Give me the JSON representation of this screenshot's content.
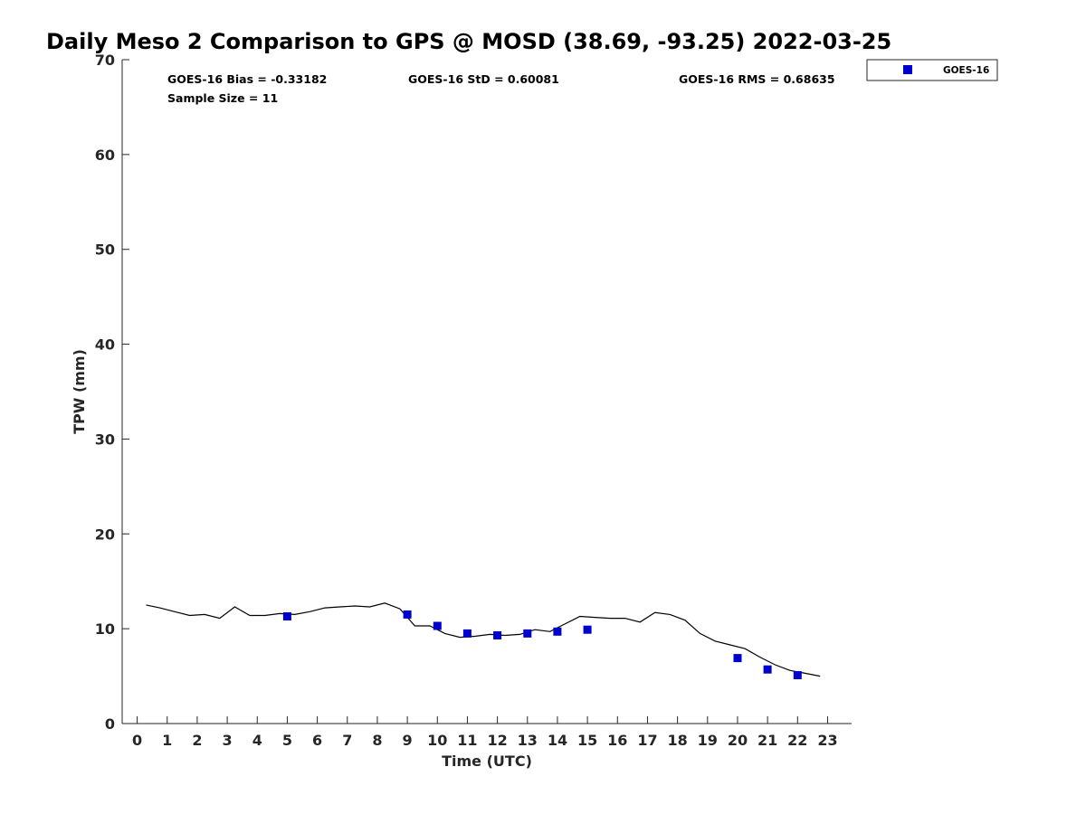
{
  "chart_data": {
    "type": "scatter",
    "title": "Daily Meso 2 Comparison to GPS @ MOSD (38.69, -93.25) 2022-03-25",
    "xlabel": "Time (UTC)",
    "ylabel": "TPW (mm)",
    "xlim": [
      -0.5,
      23.8
    ],
    "ylim": [
      0,
      70
    ],
    "x_ticks": [
      "0",
      "1",
      "2",
      "3",
      "4",
      "5",
      "6",
      "7",
      "8",
      "9",
      "10",
      "11",
      "12",
      "13",
      "14",
      "15",
      "16",
      "17",
      "18",
      "19",
      "20",
      "21",
      "22",
      "23"
    ],
    "y_ticks": [
      "0",
      "10",
      "20",
      "30",
      "40",
      "50",
      "60",
      "70"
    ],
    "stats": {
      "bias": "GOES-16 Bias = -0.33182",
      "std": "GOES-16 StD = 0.60081",
      "rms": "GOES-16 RMS = 0.68635",
      "sample": "Sample Size = 11"
    },
    "legend": {
      "position": "top-right",
      "label": "GOES-16"
    },
    "colors": {
      "goes": "#0000cc",
      "gps_line": "#000000",
      "axis": "#262626"
    },
    "series": [
      {
        "name": "GOES-16",
        "marker": "square",
        "x": [
          5,
          9,
          10,
          11,
          12,
          13,
          14,
          15,
          20,
          21,
          22
        ],
        "y": [
          11.3,
          11.5,
          10.3,
          9.5,
          9.3,
          9.5,
          9.7,
          9.9,
          6.9,
          5.7,
          5.1
        ]
      },
      {
        "marker": "line",
        "x": [
          0.3,
          0.75,
          1.25,
          1.75,
          2.25,
          2.75,
          3.25,
          3.75,
          4.25,
          4.75,
          5.25,
          5.75,
          6.25,
          6.75,
          7.25,
          7.75,
          8.25,
          8.75,
          9.25,
          9.75,
          10.25,
          10.75,
          11.25,
          11.75,
          12.25,
          12.75,
          13.25,
          13.75,
          14.25,
          14.75,
          15.25,
          15.75,
          16.25,
          16.75,
          17.25,
          17.75,
          18.25,
          18.75,
          19.25,
          19.75,
          20.25,
          20.75,
          21.25,
          21.75,
          22.25,
          22.75
        ],
        "y": [
          12.5,
          12.2,
          11.8,
          11.4,
          11.5,
          11.1,
          12.3,
          11.4,
          11.4,
          11.6,
          11.5,
          11.8,
          12.2,
          12.3,
          12.4,
          12.3,
          12.7,
          12.1,
          10.3,
          10.3,
          9.5,
          9.1,
          9.2,
          9.4,
          9.3,
          9.4,
          9.9,
          9.7,
          10.5,
          11.3,
          11.2,
          11.1,
          11.1,
          10.7,
          11.7,
          11.5,
          10.9,
          9.5,
          8.7,
          8.3,
          7.9,
          7.0,
          6.2,
          5.6,
          5.3,
          5.0
        ]
      }
    ]
  }
}
